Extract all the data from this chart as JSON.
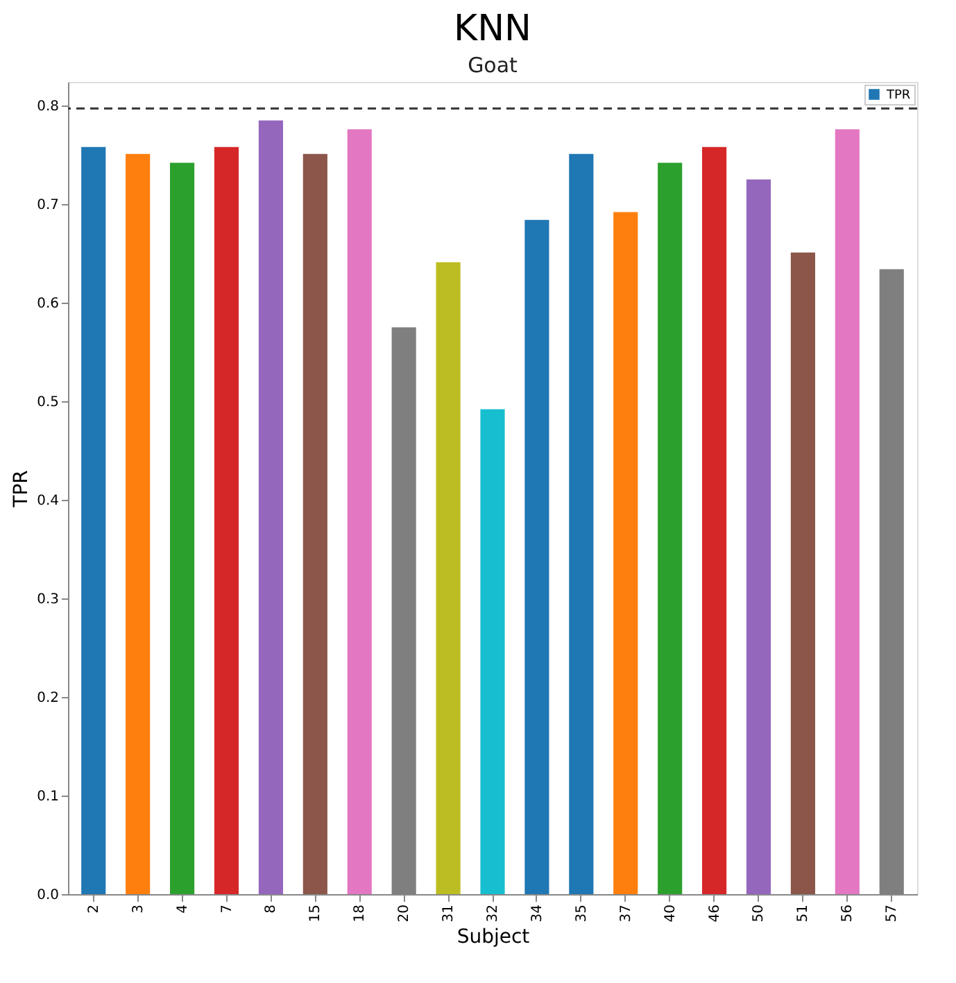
{
  "chart_data": {
    "type": "bar",
    "title": "KNN",
    "subtitle": "Goat",
    "xlabel": "Subject",
    "ylabel": "TPR",
    "categories": [
      "2",
      "3",
      "4",
      "7",
      "8",
      "15",
      "18",
      "20",
      "31",
      "32",
      "34",
      "35",
      "37",
      "40",
      "46",
      "50",
      "51",
      "56",
      "57"
    ],
    "series": [
      {
        "name": "TPR",
        "color": "#1f77b4",
        "values": [
          0.758,
          0.751,
          0.742,
          0.758,
          0.785,
          0.751,
          0.776,
          0.575,
          0.641,
          0.492,
          0.684,
          0.751,
          0.692,
          0.742,
          0.758,
          0.725,
          0.651,
          0.776,
          0.634
        ],
        "colors": [
          "#1f77b4",
          "#ff7f0e",
          "#2ca02c",
          "#d62728",
          "#9467bd",
          "#8c564b",
          "#e377c2",
          "#7f7f7f",
          "#bcbd22",
          "#17becf",
          "#1f77b4",
          "#1f77b4",
          "#ff7f0e",
          "#2ca02c",
          "#d62728",
          "#9467bd",
          "#8c564b",
          "#e377c2",
          "#7f7f7f"
        ]
      }
    ],
    "ylim": [
      0,
      0.824
    ],
    "yticks": [
      {
        "value": 0,
        "label": "0.0"
      },
      0.1,
      0.2,
      0.3,
      0.4,
      0.5,
      0.6,
      0.7,
      0.8
    ],
    "ref_lines": [
      {
        "axis": "y",
        "value": 0.797,
        "line_style": "dashed",
        "color": "#333333"
      }
    ],
    "legend": "top right",
    "grid": false
  }
}
